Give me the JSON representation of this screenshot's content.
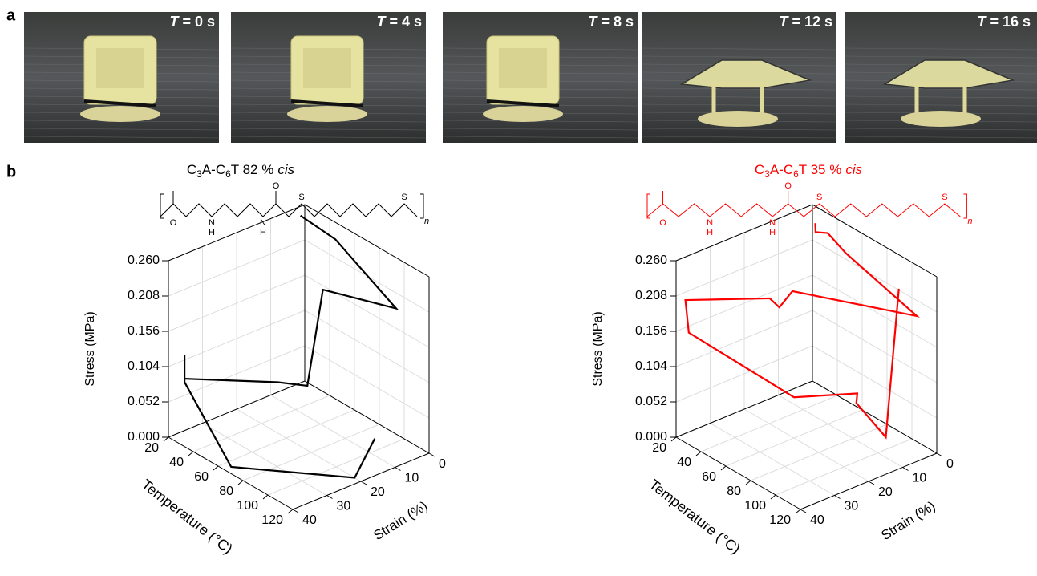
{
  "panel_labels": [
    "a",
    "b"
  ],
  "photos": [
    {
      "var": "T",
      "text": "= 0 s"
    },
    {
      "var": "T",
      "text": "= 4 s"
    },
    {
      "var": "T",
      "text": "= 8 s"
    },
    {
      "var": "T",
      "text": "= 12 s"
    },
    {
      "var": "T",
      "text": "= 16 s"
    }
  ],
  "chart_data": [
    {
      "type": "line3d",
      "title": [
        "C",
        "3",
        "A-C",
        "6",
        "T 82 %",
        "cis"
      ],
      "structure_labels": [
        "O",
        "N",
        "H",
        "N",
        "H",
        "O",
        "S",
        "S",
        "n"
      ],
      "xlabel": "Temperature (°C)",
      "ylabel": "Strain (%)",
      "zlabel": "Stress (MPa)",
      "xlim": [
        20,
        120
      ],
      "xticks": [
        20,
        40,
        60,
        80,
        100,
        120
      ],
      "ylim": [
        0,
        40
      ],
      "yticks": [
        0,
        10,
        20,
        30,
        40
      ],
      "zlim": [
        0,
        0.26
      ],
      "zticks": [
        {
          "value": 0,
          "label": "0.000"
        },
        0.052,
        0.104,
        0.156,
        0.208,
        {
          "value": 0.26,
          "label": "0.260"
        }
      ],
      "grid": true,
      "series": [
        {
          "color": "#000000",
          "x": [
            22,
            50,
            110,
            62,
            55,
            45,
            22,
            22,
            22,
            65,
            115,
            90
          ],
          "y": [
            2,
            2,
            6,
            10,
            12,
            17,
            36,
            36,
            36,
            38,
            20,
            5
          ],
          "z": [
            0.25,
            0.245,
            0.215,
            0.2,
            0.055,
            0.06,
            0.08,
            0.115,
            0.075,
            0,
            0,
            0
          ]
        }
      ]
    },
    {
      "type": "line3d",
      "title": [
        "C",
        "3",
        "A-C",
        "6",
        "T 35 %",
        "cis"
      ],
      "structure_labels": [
        "O",
        "N",
        "H",
        "N",
        "H",
        "O",
        "S",
        "S",
        "n"
      ],
      "xlabel": "Temperature (°C)",
      "ylabel": "Strain (%)",
      "zlabel": "Stress (MPa)",
      "xlim": [
        20,
        120
      ],
      "xticks": [
        20,
        40,
        60,
        80,
        100,
        120
      ],
      "ylim": [
        0,
        40
      ],
      "yticks": [
        0,
        10,
        20,
        30,
        40
      ],
      "zlim": [
        0,
        0.26
      ],
      "zticks": [
        {
          "value": 0,
          "label": "0.000"
        },
        0.052,
        0.104,
        0.156,
        0.208,
        {
          "value": 0.26,
          "label": "0.260"
        }
      ],
      "grid": true,
      "series": [
        {
          "color": "#ff0000",
          "x": [
            25,
            28,
            35,
            55,
            115,
            45,
            40,
            35,
            22,
            22,
            60,
            78,
            80,
            90,
            95
          ],
          "y": [
            1,
            2,
            1,
            3,
            4,
            15,
            17,
            18,
            38,
            37,
            20,
            8,
            9,
            4,
            2
          ],
          "z": [
            0.24,
            0.232,
            0.236,
            0.232,
            0.205,
            0.19,
            0.165,
            0.175,
            0.2,
            0.15,
            0.06,
            0.06,
            0.05,
            0.0,
            0.22
          ]
        }
      ]
    }
  ]
}
